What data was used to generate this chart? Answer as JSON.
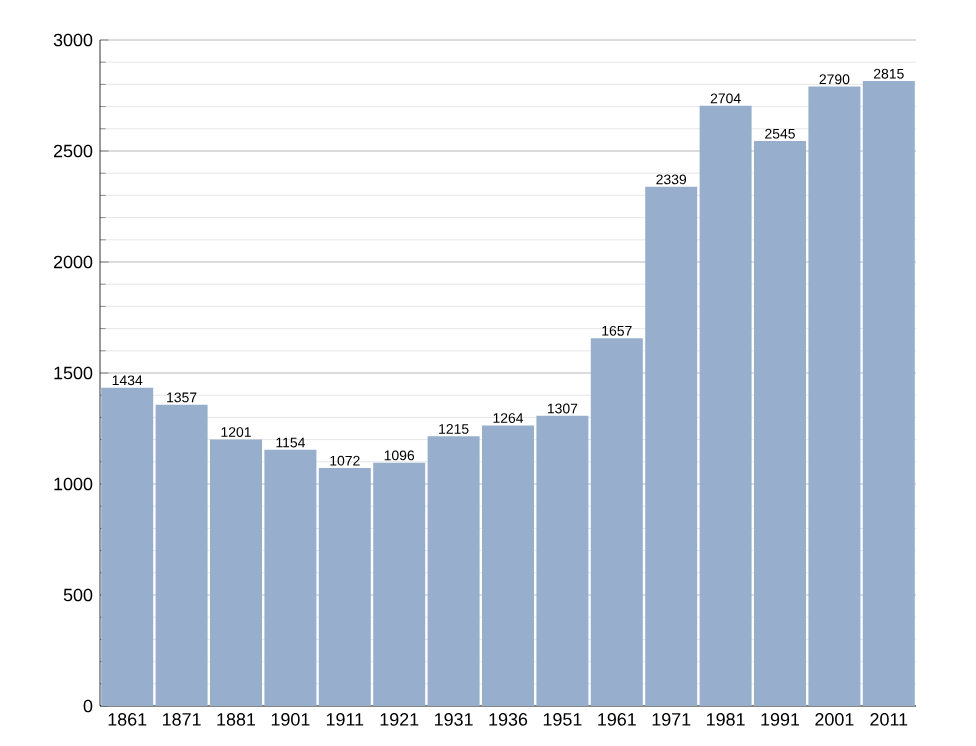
{
  "chart_data": {
    "type": "bar",
    "categories": [
      "1861",
      "1871",
      "1881",
      "1901",
      "1911",
      "1921",
      "1931",
      "1936",
      "1951",
      "1961",
      "1971",
      "1981",
      "1991",
      "2001",
      "2011"
    ],
    "values": [
      1434,
      1357,
      1201,
      1154,
      1072,
      1096,
      1215,
      1264,
      1307,
      1657,
      2339,
      2704,
      2545,
      2790,
      2815
    ],
    "color": "#97afcc",
    "ylim": [
      0,
      3000
    ],
    "yticks": [
      0,
      500,
      1000,
      1500,
      2000,
      2500,
      3000
    ],
    "grid": "y",
    "data_labels": true
  }
}
